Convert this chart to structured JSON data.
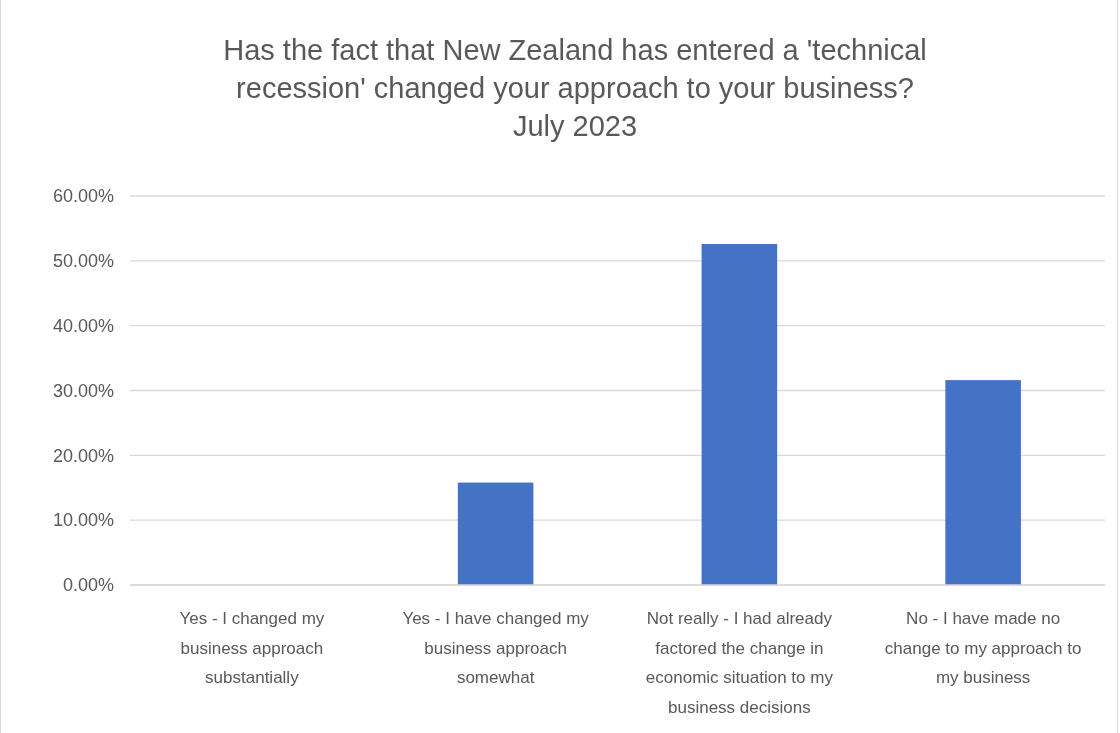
{
  "chart_data": {
    "type": "bar",
    "title": "Has the fact that New Zealand has entered a 'technical recession' changed your approach to your business?\nJuly 2023",
    "categories": [
      "Yes - I changed my business approach substantially",
      "Yes - I have changed my business approach somewhat",
      "Not really - I had already factored the change in economic situation to my business decisions",
      "No - I have made no change to my approach to my business"
    ],
    "values": [
      0,
      15.8,
      52.6,
      31.6
    ],
    "color": "#4472c4",
    "ylim": [
      0,
      60
    ],
    "yticks": [
      {
        "value": 0,
        "label": "0.00%"
      },
      {
        "value": 10,
        "label": "10.00%"
      },
      {
        "value": 20,
        "label": "20.00%"
      },
      {
        "value": 30,
        "label": "30.00%"
      },
      {
        "value": 40,
        "label": "40.00%"
      },
      {
        "value": 50,
        "label": "50.00%"
      },
      {
        "value": 60,
        "label": "60.00%"
      }
    ],
    "grid": "y"
  }
}
